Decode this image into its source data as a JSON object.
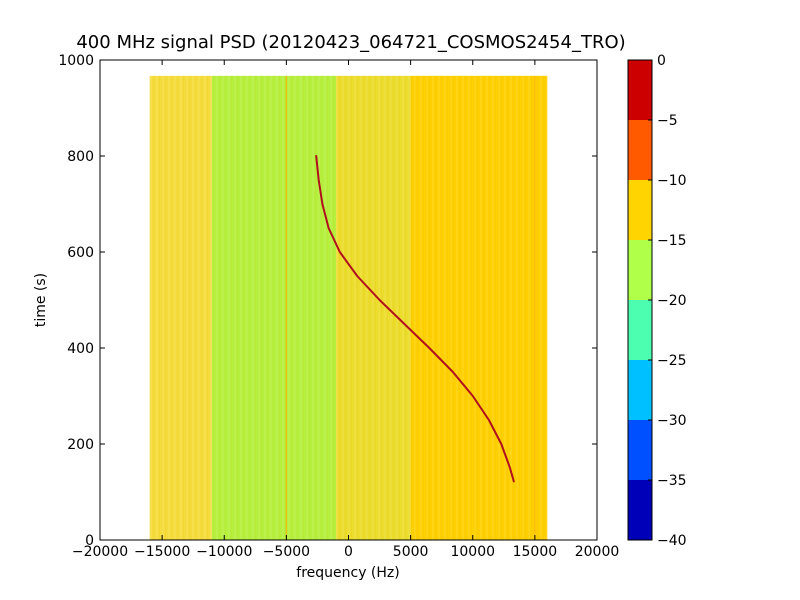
{
  "chart_data": {
    "type": "heatmap",
    "title": "400 MHz signal PSD (20120423_064721_COSMOS2454_TRO)",
    "xlabel": "frequency (Hz)",
    "ylabel": "time (s)",
    "xlim": [
      -20000,
      20000
    ],
    "ylim": [
      0,
      1000
    ],
    "xticks": [
      -20000,
      -15000,
      -10000,
      -5000,
      0,
      5000,
      10000,
      15000,
      20000
    ],
    "xtick_labels": [
      "−20000",
      "−15000",
      "−10000",
      "−5000",
      "0",
      "5000",
      "10000",
      "15000",
      "20000"
    ],
    "yticks": [
      0,
      200,
      400,
      600,
      800,
      1000
    ],
    "ytick_labels": [
      "0",
      "200",
      "400",
      "600",
      "800",
      "1000"
    ],
    "grid": false,
    "data_extent": {
      "freq": [
        -16000,
        16000
      ],
      "time": [
        0,
        967
      ]
    },
    "psd_bands": [
      {
        "freq_from": -16000,
        "freq_to": -11000,
        "level": -14,
        "color": "#f5dc3c"
      },
      {
        "freq_from": -11000,
        "freq_to": -1000,
        "level": -16,
        "color": "#b6f03e"
      },
      {
        "freq_from": -1000,
        "freq_to": 5000,
        "level": -14,
        "color": "#ecdc2c"
      },
      {
        "freq_from": 5000,
        "freq_to": 16000,
        "level": -12,
        "color": "#ffd000"
      }
    ],
    "spurs": [
      {
        "freq": -5000,
        "level": -12
      },
      {
        "freq": 15000,
        "level": -13
      }
    ],
    "signal_trace": {
      "level": -2,
      "color": "#b0101e",
      "points": [
        {
          "t": 122,
          "f": 13300
        },
        {
          "t": 150,
          "f": 13000
        },
        {
          "t": 200,
          "f": 12300
        },
        {
          "t": 250,
          "f": 11300
        },
        {
          "t": 300,
          "f": 10000
        },
        {
          "t": 350,
          "f": 8400
        },
        {
          "t": 400,
          "f": 6500
        },
        {
          "t": 450,
          "f": 4500
        },
        {
          "t": 500,
          "f": 2500
        },
        {
          "t": 550,
          "f": 700
        },
        {
          "t": 600,
          "f": -700
        },
        {
          "t": 650,
          "f": -1600
        },
        {
          "t": 700,
          "f": -2100
        },
        {
          "t": 750,
          "f": -2400
        },
        {
          "t": 800,
          "f": -2600
        }
      ]
    },
    "colorbar": {
      "range": [
        -40,
        0
      ],
      "ticks": [
        0,
        -5,
        -10,
        -15,
        -20,
        -25,
        -30,
        -35,
        -40
      ],
      "tick_labels": [
        "0",
        "−5",
        "−10",
        "−15",
        "−20",
        "−25",
        "−30",
        "−35",
        "−40"
      ],
      "levels": [
        {
          "from": -40,
          "to": -35,
          "color": "#0000b8"
        },
        {
          "from": -35,
          "to": -30,
          "color": "#0050ff"
        },
        {
          "from": -30,
          "to": -25,
          "color": "#00c0ff"
        },
        {
          "from": -25,
          "to": -20,
          "color": "#4cffb0"
        },
        {
          "from": -20,
          "to": -15,
          "color": "#b0ff48"
        },
        {
          "from": -15,
          "to": -10,
          "color": "#ffd400"
        },
        {
          "from": -10,
          "to": -5,
          "color": "#ff5a00"
        },
        {
          "from": -5,
          "to": 0,
          "color": "#cc0000"
        }
      ]
    }
  }
}
